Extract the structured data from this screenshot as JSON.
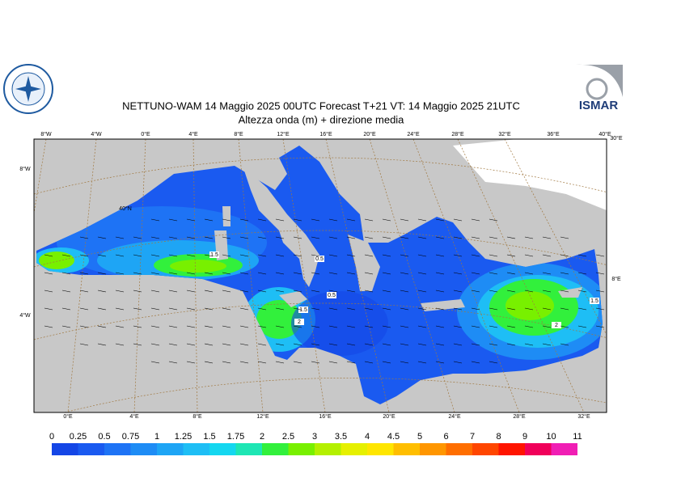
{
  "header": {
    "title": "NETTUNO-WAM  14   Maggio  2025 00UTC Forecast T+21 VT: 14   Maggio  2025 21UTC",
    "subtitle": "Altezza onda (m) + direzione media",
    "logo_text": "ISMAR"
  },
  "map": {
    "lon_labels_top": [
      "8°W",
      "4°W",
      "0°E",
      "4°E",
      "8°E",
      "12°E",
      "16°E",
      "20°E",
      "24°E",
      "28°E",
      "32°E",
      "36°E",
      "40°E",
      "30°E"
    ],
    "lon_labels_bottom": [
      "0°E",
      "4°E",
      "8°E",
      "12°E",
      "16°E",
      "20°E",
      "24°E",
      "28°E",
      "32°E"
    ],
    "lat_labels_left": [
      "8°W",
      "4°W"
    ],
    "lat_label_inner": "40°N",
    "lat_labels_right": [
      "8°E"
    ],
    "contour_labels": [
      "1.5",
      "0.5",
      "0.5",
      "1.5",
      "2",
      "2",
      "1.5"
    ]
  },
  "legend": {
    "levels": [
      "0",
      "0.25",
      "0.5",
      "0.75",
      "1",
      "1.25",
      "1.5",
      "1.75",
      "2",
      "2.5",
      "3",
      "3.5",
      "4",
      "4.5",
      "5",
      "6",
      "7",
      "8",
      "9",
      "10",
      "11"
    ],
    "colors": [
      "#1446e6",
      "#1a5af0",
      "#1e73f5",
      "#1e8cf5",
      "#1ea5f5",
      "#1ebef5",
      "#14d7f0",
      "#1ee6b4",
      "#32f03c",
      "#78f000",
      "#b4f000",
      "#e6f000",
      "#ffe600",
      "#ffbe00",
      "#ff9600",
      "#ff6e00",
      "#ff4600",
      "#ff1400",
      "#f0005a",
      "#f01eb4"
    ]
  }
}
